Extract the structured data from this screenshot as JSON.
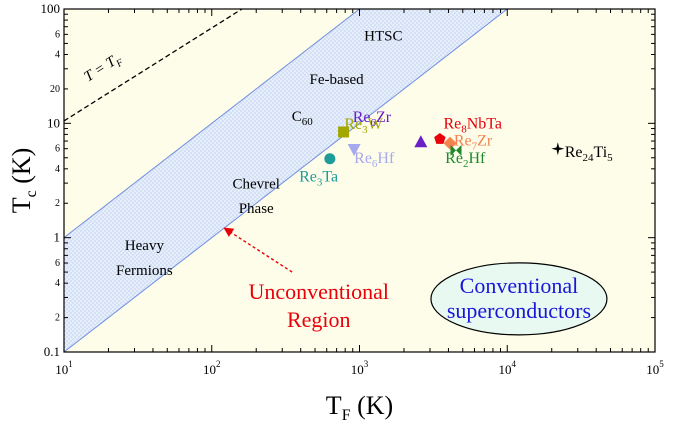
{
  "chart_data": {
    "type": "scatter",
    "xscale": "log",
    "yscale": "log",
    "xlim": [
      10,
      100000
    ],
    "ylim": [
      0.1,
      100
    ],
    "xlabel": {
      "main": "T",
      "sub": "F",
      "unit": " (K)"
    },
    "ylabel": {
      "main": "T",
      "sub": "c",
      "unit": " (K)"
    },
    "xticks": [
      {
        "value": 10,
        "base": "10",
        "exp": "1"
      },
      {
        "value": 100,
        "base": "10",
        "exp": "2"
      },
      {
        "value": 1000,
        "base": "10",
        "exp": "3"
      },
      {
        "value": 10000,
        "base": "10",
        "exp": "4"
      },
      {
        "value": 100000,
        "base": "10",
        "exp": "5"
      }
    ],
    "yticks": [
      {
        "value": 0.1,
        "label": "0.1"
      },
      {
        "value": 1,
        "label": "1"
      },
      {
        "value": 10,
        "label": "10"
      },
      {
        "value": 100,
        "label": "100"
      }
    ],
    "yminor_labels": [
      {
        "value": 0.2,
        "label": "2"
      },
      {
        "value": 0.4,
        "label": "4"
      },
      {
        "value": 0.6,
        "label": "6"
      },
      {
        "value": 2,
        "label": "2"
      },
      {
        "value": 4,
        "label": "4"
      },
      {
        "value": 6,
        "label": "6"
      },
      {
        "value": 20,
        "label": "20"
      },
      {
        "value": 40,
        "label": "4"
      },
      {
        "value": 60,
        "label": "6"
      }
    ],
    "band": {
      "lower": [
        [
          10,
          0.1
        ],
        [
          10000,
          100
        ]
      ],
      "upper": [
        [
          10,
          1
        ],
        [
          1000,
          100
        ]
      ]
    },
    "fermi_line": {
      "points": [
        [
          10,
          10.5
        ],
        [
          160,
          100
        ]
      ],
      "label": {
        "main": "T = T",
        "sub": "F"
      }
    },
    "region_labels": [
      {
        "text": "HTSC",
        "x": 1450,
        "y": 53
      },
      {
        "text": "Fe-based",
        "x": 700,
        "y": 22
      },
      {
        "text": "C",
        "sub": "60",
        "x": 410,
        "y": 10.5
      },
      {
        "text": "Chevrel",
        "x": 200,
        "y": 2.7
      },
      {
        "text": "Phase",
        "x": 200,
        "y": 1.65
      },
      {
        "text": "Heavy",
        "x": 35,
        "y": 0.78
      },
      {
        "text": "Fermions",
        "x": 35,
        "y": 0.47
      }
    ],
    "points": [
      {
        "name": "Re",
        "sub": "3",
        "tail": "W",
        "x": 780,
        "y": 8.4,
        "marker": "square",
        "color": "#a3a800",
        "lx": 790,
        "ly": 8.9
      },
      {
        "name": "Re",
        "sub": "6",
        "tail": "Zr",
        "x": 2600,
        "y": 6.9,
        "marker": "triangle",
        "color": "#6a1fc7",
        "lx": 900,
        "ly": 10.3
      },
      {
        "name": "Re",
        "sub": "6",
        "tail": "Hf",
        "x": 920,
        "y": 5.9,
        "marker": "triangle-down",
        "color": "#a7a9ef",
        "lx": 920,
        "ly": 4.5
      },
      {
        "name": "Re",
        "sub": "3",
        "tail": "Ta",
        "x": 630,
        "y": 4.9,
        "marker": "circle",
        "color": "#1f9b9a",
        "lx": 390,
        "ly": 3.1
      },
      {
        "name": "Re",
        "sub": "8",
        "tail": "NbTa",
        "x": 3500,
        "y": 7.3,
        "marker": "pentagon",
        "color": "#e8000b",
        "lx": 3700,
        "ly": 9.0
      },
      {
        "name": "Re",
        "sub": "7",
        "tail": "Zr",
        "x": 4100,
        "y": 6.7,
        "marker": "diamond",
        "color": "#f5834f",
        "lx": 4350,
        "ly": 6.4
      },
      {
        "name": "Re",
        "sub": "2",
        "tail": "Hf",
        "x": 4500,
        "y": 5.8,
        "marker": "bowtie",
        "color": "#1f8a2d",
        "lx": 3800,
        "ly": 4.5
      },
      {
        "name": "Re",
        "sub": "24",
        "tail": "Ti",
        "sub2": "5",
        "x": 22000,
        "y": 6.0,
        "marker": "star4",
        "color": "#000000",
        "lx": 24500,
        "ly": 5.1
      }
    ],
    "annotations": {
      "unconventional": {
        "lines": [
          "Unconventional",
          "Region"
        ],
        "x": 530,
        "y": 0.29,
        "arrow_from": [
          350,
          0.5
        ],
        "arrow_to": [
          123,
          1.2
        ]
      },
      "conventional": {
        "lines": [
          "Conventional",
          "superconductors"
        ],
        "x": 12000,
        "y": 0.28
      }
    },
    "colors": {
      "background": "#fdfdea",
      "band_fill": "#d4e0f6",
      "band_edge": "#6f8fe0",
      "arrow": "#e8000b",
      "ellipse_fill": "#e7f9f1",
      "unconventional_text": "#e8000b",
      "conventional_text": "#1a16d9"
    }
  }
}
